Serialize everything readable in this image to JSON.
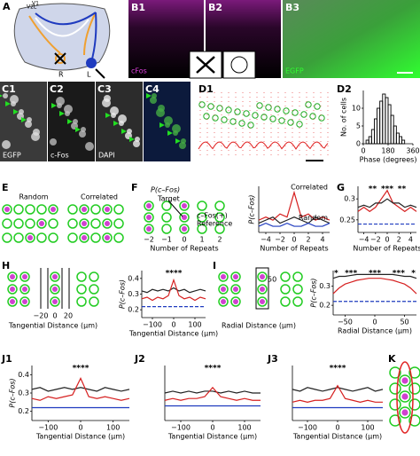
{
  "figure": {
    "A": {
      "label": "A",
      "v2l": "V2L",
      "v1": "V1",
      "r": "R",
      "l": "L"
    },
    "B1": {
      "label": "B1",
      "stain": "cFos"
    },
    "B2": {
      "label": "B2"
    },
    "B3": {
      "label": "B3",
      "stain": "EGFP"
    },
    "C1": {
      "label": "C1",
      "stain": "EGFP"
    },
    "C2": {
      "label": "C2",
      "stain": "c-Fos"
    },
    "C3": {
      "label": "C3",
      "stain": "DAPI"
    },
    "C4": {
      "label": "C4"
    },
    "D1": {
      "label": "D1"
    },
    "D2": {
      "label": "D2"
    },
    "E": {
      "label": "E",
      "left": "Random",
      "right": "Correlated"
    },
    "F": {
      "label": "F",
      "ylabel": "P(c–Fos)",
      "target": "Target",
      "positive": "c–Fos(+)",
      "reference": "Reference",
      "ticks": [
        "−2",
        "−1",
        "0",
        "1",
        "2"
      ],
      "xlabel": "Number of Repeats"
    },
    "G": {
      "label": "G"
    },
    "H": {
      "label": "H",
      "ticks": [
        "−20",
        "0",
        "20"
      ],
      "xlabel": "Tangential Distance (μm)"
    },
    "I": {
      "label": "I",
      "tick": "50",
      "xlabel": "Radial Distance (μm)"
    },
    "J1": {
      "label": "J1"
    },
    "J2": {
      "label": "J2"
    },
    "J3": {
      "label": "J3"
    },
    "K": {
      "label": "K"
    }
  },
  "chart_data": [
    {
      "type": "histogram",
      "xlabel": "Phase (degrees)",
      "ylabel": "No. of cells",
      "bins": [
        0,
        20,
        40,
        60,
        80,
        100,
        120,
        140,
        160,
        180,
        200,
        220,
        240,
        260,
        280,
        300,
        320,
        340,
        360
      ],
      "values": [
        0,
        1,
        2,
        4,
        7,
        10,
        12,
        14,
        13,
        11,
        8,
        5,
        3,
        2,
        1,
        0,
        0,
        0
      ],
      "color": "#000",
      "xlim": [
        0,
        360
      ],
      "ylim": [
        0,
        15
      ],
      "xticks": [
        0,
        180,
        360
      ],
      "yticks": [
        0,
        5,
        10
      ]
    },
    {
      "type": "line",
      "xlabel": "Number of Repeats",
      "ylabel": "P(c–Fos)",
      "x": [
        -5,
        -4,
        -3,
        -2,
        -1,
        0,
        1,
        2,
        3,
        4,
        5
      ],
      "series": [
        {
          "name": "Correlated",
          "color": "#d62020",
          "style": "solid",
          "values": [
            0.24,
            0.25,
            0.24,
            0.26,
            0.25,
            0.33,
            0.25,
            0.26,
            0.24,
            0.25,
            0.24
          ]
        },
        {
          "color": "#222222",
          "style": "solid",
          "values": [
            0.23,
            0.24,
            0.25,
            0.23,
            0.24,
            0.25,
            0.24,
            0.23,
            0.25,
            0.24,
            0.23
          ]
        },
        {
          "name": "Random",
          "color": "#1f3bbf",
          "style": "solid",
          "values": [
            0.22,
            0.23,
            0.22,
            0.22,
            0.23,
            0.22,
            0.22,
            0.23,
            0.22,
            0.22,
            0.23
          ]
        }
      ],
      "xlim": [
        -5,
        5
      ],
      "ylim": [
        0.2,
        0.35
      ],
      "xticks": [
        {
          "value": -4,
          "label": "−4"
        },
        {
          "value": -2,
          "label": "−2"
        },
        0,
        2,
        4
      ]
    },
    {
      "type": "line",
      "xlabel": "Number of Repeats",
      "x": [
        -5,
        -4,
        -3,
        -2,
        -1,
        0,
        1,
        2,
        3,
        4,
        5
      ],
      "series": [
        {
          "color": "#d62020",
          "style": "solid",
          "values": [
            0.27,
            0.28,
            0.27,
            0.28,
            0.3,
            0.32,
            0.29,
            0.28,
            0.27,
            0.28,
            0.27
          ]
        },
        {
          "color": "#222222",
          "style": "solid",
          "values": [
            0.28,
            0.285,
            0.28,
            0.29,
            0.29,
            0.3,
            0.29,
            0.29,
            0.28,
            0.285,
            0.28
          ]
        },
        {
          "color": "#1f3bbf",
          "style": "dashed",
          "values": [
            0.24,
            0.24,
            0.24,
            0.24,
            0.24,
            0.24,
            0.24,
            0.24,
            0.24,
            0.24,
            0.24
          ]
        }
      ],
      "annotations": [
        {
          "text": "**",
          "x": -2.5
        },
        {
          "text": "***",
          "x": 0
        },
        {
          "text": "**",
          "x": 2.5
        }
      ],
      "xlim": [
        -5,
        5
      ],
      "ylim": [
        0.22,
        0.33
      ],
      "xticks": [
        {
          "value": -4,
          "label": "−4"
        },
        {
          "value": -2,
          "label": "−2"
        },
        0,
        2,
        4
      ],
      "yticks": [
        0.25,
        0.3
      ]
    },
    {
      "type": "line",
      "xlabel": "Tangential Distance (μm)",
      "ylabel": "P(c–Fos)",
      "x": [
        -150,
        -125,
        -100,
        -75,
        -50,
        -25,
        0,
        25,
        50,
        75,
        100,
        125,
        150
      ],
      "series": [
        {
          "color": "#222222",
          "style": "solid",
          "values": [
            0.32,
            0.31,
            0.33,
            0.32,
            0.33,
            0.32,
            0.34,
            0.32,
            0.33,
            0.31,
            0.32,
            0.33,
            0.32
          ]
        },
        {
          "color": "#d62020",
          "style": "solid",
          "values": [
            0.27,
            0.28,
            0.26,
            0.28,
            0.27,
            0.29,
            0.39,
            0.29,
            0.27,
            0.28,
            0.26,
            0.28,
            0.27
          ]
        },
        {
          "color": "#1f3bbf",
          "style": "dashed",
          "values": [
            0.22,
            0.22,
            0.22,
            0.22,
            0.22,
            0.22,
            0.22,
            0.22,
            0.22,
            0.22,
            0.22,
            0.22,
            0.22
          ]
        }
      ],
      "annotations": [
        {
          "text": "****",
          "x": 0
        }
      ],
      "xlim": [
        -150,
        150
      ],
      "ylim": [
        0.15,
        0.45
      ],
      "xticks": [
        {
          "value": -100,
          "label": "−100"
        },
        0,
        100
      ],
      "yticks": [
        0.2,
        0.3,
        0.4
      ]
    },
    {
      "type": "line",
      "xlabel": "Radial Distance (μm)",
      "ylabel": "P(c–Fos)",
      "x": [
        -70,
        -60,
        -50,
        -40,
        -30,
        -20,
        -10,
        0,
        10,
        20,
        30,
        40,
        50,
        60,
        70
      ],
      "series": [
        {
          "color": "#222222",
          "style": "solid",
          "values": [
            0.34,
            0.35,
            0.35,
            0.355,
            0.36,
            0.36,
            0.36,
            0.36,
            0.36,
            0.36,
            0.36,
            0.355,
            0.35,
            0.35,
            0.34
          ]
        },
        {
          "color": "#d62020",
          "style": "solid",
          "values": [
            0.26,
            0.29,
            0.31,
            0.32,
            0.33,
            0.335,
            0.34,
            0.34,
            0.34,
            0.335,
            0.33,
            0.32,
            0.31,
            0.29,
            0.26
          ]
        },
        {
          "color": "#1f3bbf",
          "style": "dashed",
          "values": [
            0.22,
            0.22,
            0.22,
            0.22,
            0.22,
            0.22,
            0.22,
            0.22,
            0.22,
            0.22,
            0.22,
            0.22,
            0.22,
            0.22,
            0.22
          ]
        }
      ],
      "annotations": [
        {
          "text": "*",
          "x": -65
        },
        {
          "text": "***",
          "x": -40
        },
        {
          "text": "***",
          "x": 0
        },
        {
          "text": "***",
          "x": 40
        },
        {
          "text": "*",
          "x": 65
        }
      ],
      "xlim": [
        -70,
        70
      ],
      "ylim": [
        0.15,
        0.38
      ],
      "xticks": [
        {
          "value": -50,
          "label": "−50"
        },
        0,
        50
      ],
      "yticks": [
        0.2,
        0.3
      ]
    },
    {
      "type": "line",
      "xlabel": "Tangential Distance (μm)",
      "ylabel": "P(c–Fos)",
      "x": [
        -150,
        -125,
        -100,
        -75,
        -50,
        -25,
        0,
        25,
        50,
        75,
        100,
        125,
        150
      ],
      "series": [
        {
          "color": "#222222",
          "style": "solid",
          "values": [
            0.32,
            0.33,
            0.31,
            0.32,
            0.33,
            0.32,
            0.33,
            0.32,
            0.31,
            0.33,
            0.32,
            0.31,
            0.32
          ]
        },
        {
          "color": "#d62020",
          "style": "solid",
          "values": [
            0.27,
            0.26,
            0.28,
            0.27,
            0.28,
            0.29,
            0.38,
            0.28,
            0.27,
            0.28,
            0.27,
            0.26,
            0.27
          ]
        },
        {
          "color": "#1f3bbf",
          "style": "solid",
          "values": [
            0.22,
            0.22,
            0.22,
            0.22,
            0.22,
            0.22,
            0.22,
            0.22,
            0.22,
            0.22,
            0.22,
            0.22,
            0.22
          ]
        }
      ],
      "annotations": [
        {
          "text": "****",
          "x": 0
        }
      ],
      "xlim": [
        -150,
        150
      ],
      "ylim": [
        0.15,
        0.45
      ],
      "xticks": [
        {
          "value": -100,
          "label": "−100"
        },
        0,
        100
      ],
      "yticks": [
        0.2,
        0.3,
        0.4
      ]
    },
    {
      "type": "line",
      "xlabel": "Tangential Distance (μm)",
      "x": [
        -150,
        -125,
        -100,
        -75,
        -50,
        -25,
        0,
        25,
        50,
        75,
        100,
        125,
        150
      ],
      "series": [
        {
          "color": "#222222",
          "style": "solid",
          "values": [
            0.3,
            0.31,
            0.3,
            0.31,
            0.3,
            0.31,
            0.31,
            0.3,
            0.31,
            0.3,
            0.31,
            0.3,
            0.3
          ]
        },
        {
          "color": "#d62020",
          "style": "solid",
          "values": [
            0.26,
            0.27,
            0.26,
            0.27,
            0.27,
            0.28,
            0.33,
            0.28,
            0.27,
            0.26,
            0.27,
            0.26,
            0.26
          ]
        },
        {
          "color": "#1f3bbf",
          "style": "solid",
          "values": [
            0.23,
            0.23,
            0.23,
            0.23,
            0.23,
            0.23,
            0.23,
            0.23,
            0.23,
            0.23,
            0.23,
            0.23,
            0.23
          ]
        }
      ],
      "annotations": [
        {
          "text": "****",
          "x": 0
        }
      ],
      "xlim": [
        -150,
        150
      ],
      "ylim": [
        0.15,
        0.45
      ],
      "xticks": [
        {
          "value": -100,
          "label": "−100"
        },
        0,
        100
      ]
    },
    {
      "type": "line",
      "xlabel": "Tangential Distance (μm)",
      "x": [
        -150,
        -125,
        -100,
        -75,
        -50,
        -25,
        0,
        25,
        50,
        75,
        100,
        125,
        150
      ],
      "series": [
        {
          "color": "#222222",
          "style": "solid",
          "values": [
            0.32,
            0.31,
            0.33,
            0.32,
            0.31,
            0.32,
            0.33,
            0.32,
            0.31,
            0.32,
            0.33,
            0.31,
            0.32
          ]
        },
        {
          "color": "#d62020",
          "style": "solid",
          "values": [
            0.25,
            0.26,
            0.25,
            0.26,
            0.26,
            0.27,
            0.34,
            0.27,
            0.26,
            0.25,
            0.26,
            0.25,
            0.25
          ]
        },
        {
          "color": "#1f3bbf",
          "style": "solid",
          "values": [
            0.22,
            0.22,
            0.22,
            0.22,
            0.22,
            0.22,
            0.22,
            0.22,
            0.22,
            0.22,
            0.22,
            0.22,
            0.22
          ]
        }
      ],
      "annotations": [
        {
          "text": "****",
          "x": 0
        }
      ],
      "xlim": [
        -150,
        150
      ],
      "ylim": [
        0.15,
        0.45
      ],
      "xticks": [
        {
          "value": -100,
          "label": "−100"
        },
        0,
        100
      ]
    }
  ]
}
